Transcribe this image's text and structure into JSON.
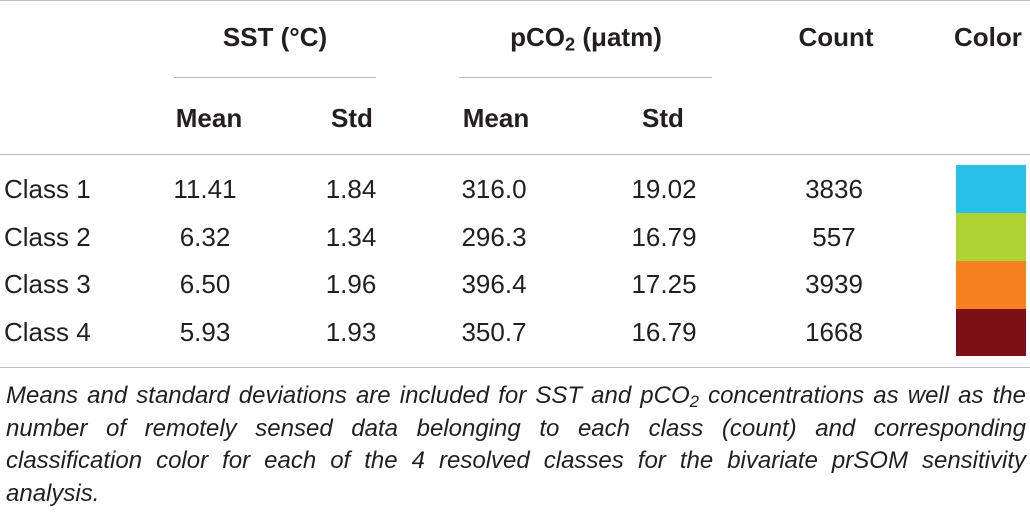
{
  "table": {
    "group_headers": {
      "sst_label": "SST (°C)",
      "pco2_label_main": "pCO",
      "pco2_label_sub": "2",
      "pco2_label_unit": "(μatm)",
      "count_label": "Count",
      "color_label": "Color"
    },
    "sub_headers": {
      "sst_mean": "Mean",
      "sst_std": "Std",
      "pco2_mean": "Mean",
      "pco2_std": "Std"
    },
    "rows": [
      {
        "label": "Class 1",
        "sst_mean": "11.41",
        "sst_std": "1.84",
        "pco2_mean": "316.0",
        "pco2_std": "19.02",
        "count": "3836",
        "color": "#29c0e9"
      },
      {
        "label": "Class 2",
        "sst_mean": "6.32",
        "sst_std": "1.34",
        "pco2_mean": "296.3",
        "pco2_std": "16.79",
        "count": "557",
        "color": "#aed232"
      },
      {
        "label": "Class 3",
        "sst_mean": "6.50",
        "sst_std": "1.96",
        "pco2_mean": "396.4",
        "pco2_std": "17.25",
        "count": "3939",
        "color": "#f7801f"
      },
      {
        "label": "Class 4",
        "sst_mean": "5.93",
        "sst_std": "1.93",
        "pco2_mean": "350.7",
        "pco2_std": "16.79",
        "count": "1668",
        "color": "#7d1016"
      }
    ]
  },
  "caption": {
    "part1": "Means and standard deviations are included for SST and pCO",
    "sub": "2",
    "part2": " concentrations as well as the number of remotely sensed data belonging to each class (count) and corresponding classification color for each of the 4 resolved classes for the bivariate prSOM sensitivity analysis."
  }
}
